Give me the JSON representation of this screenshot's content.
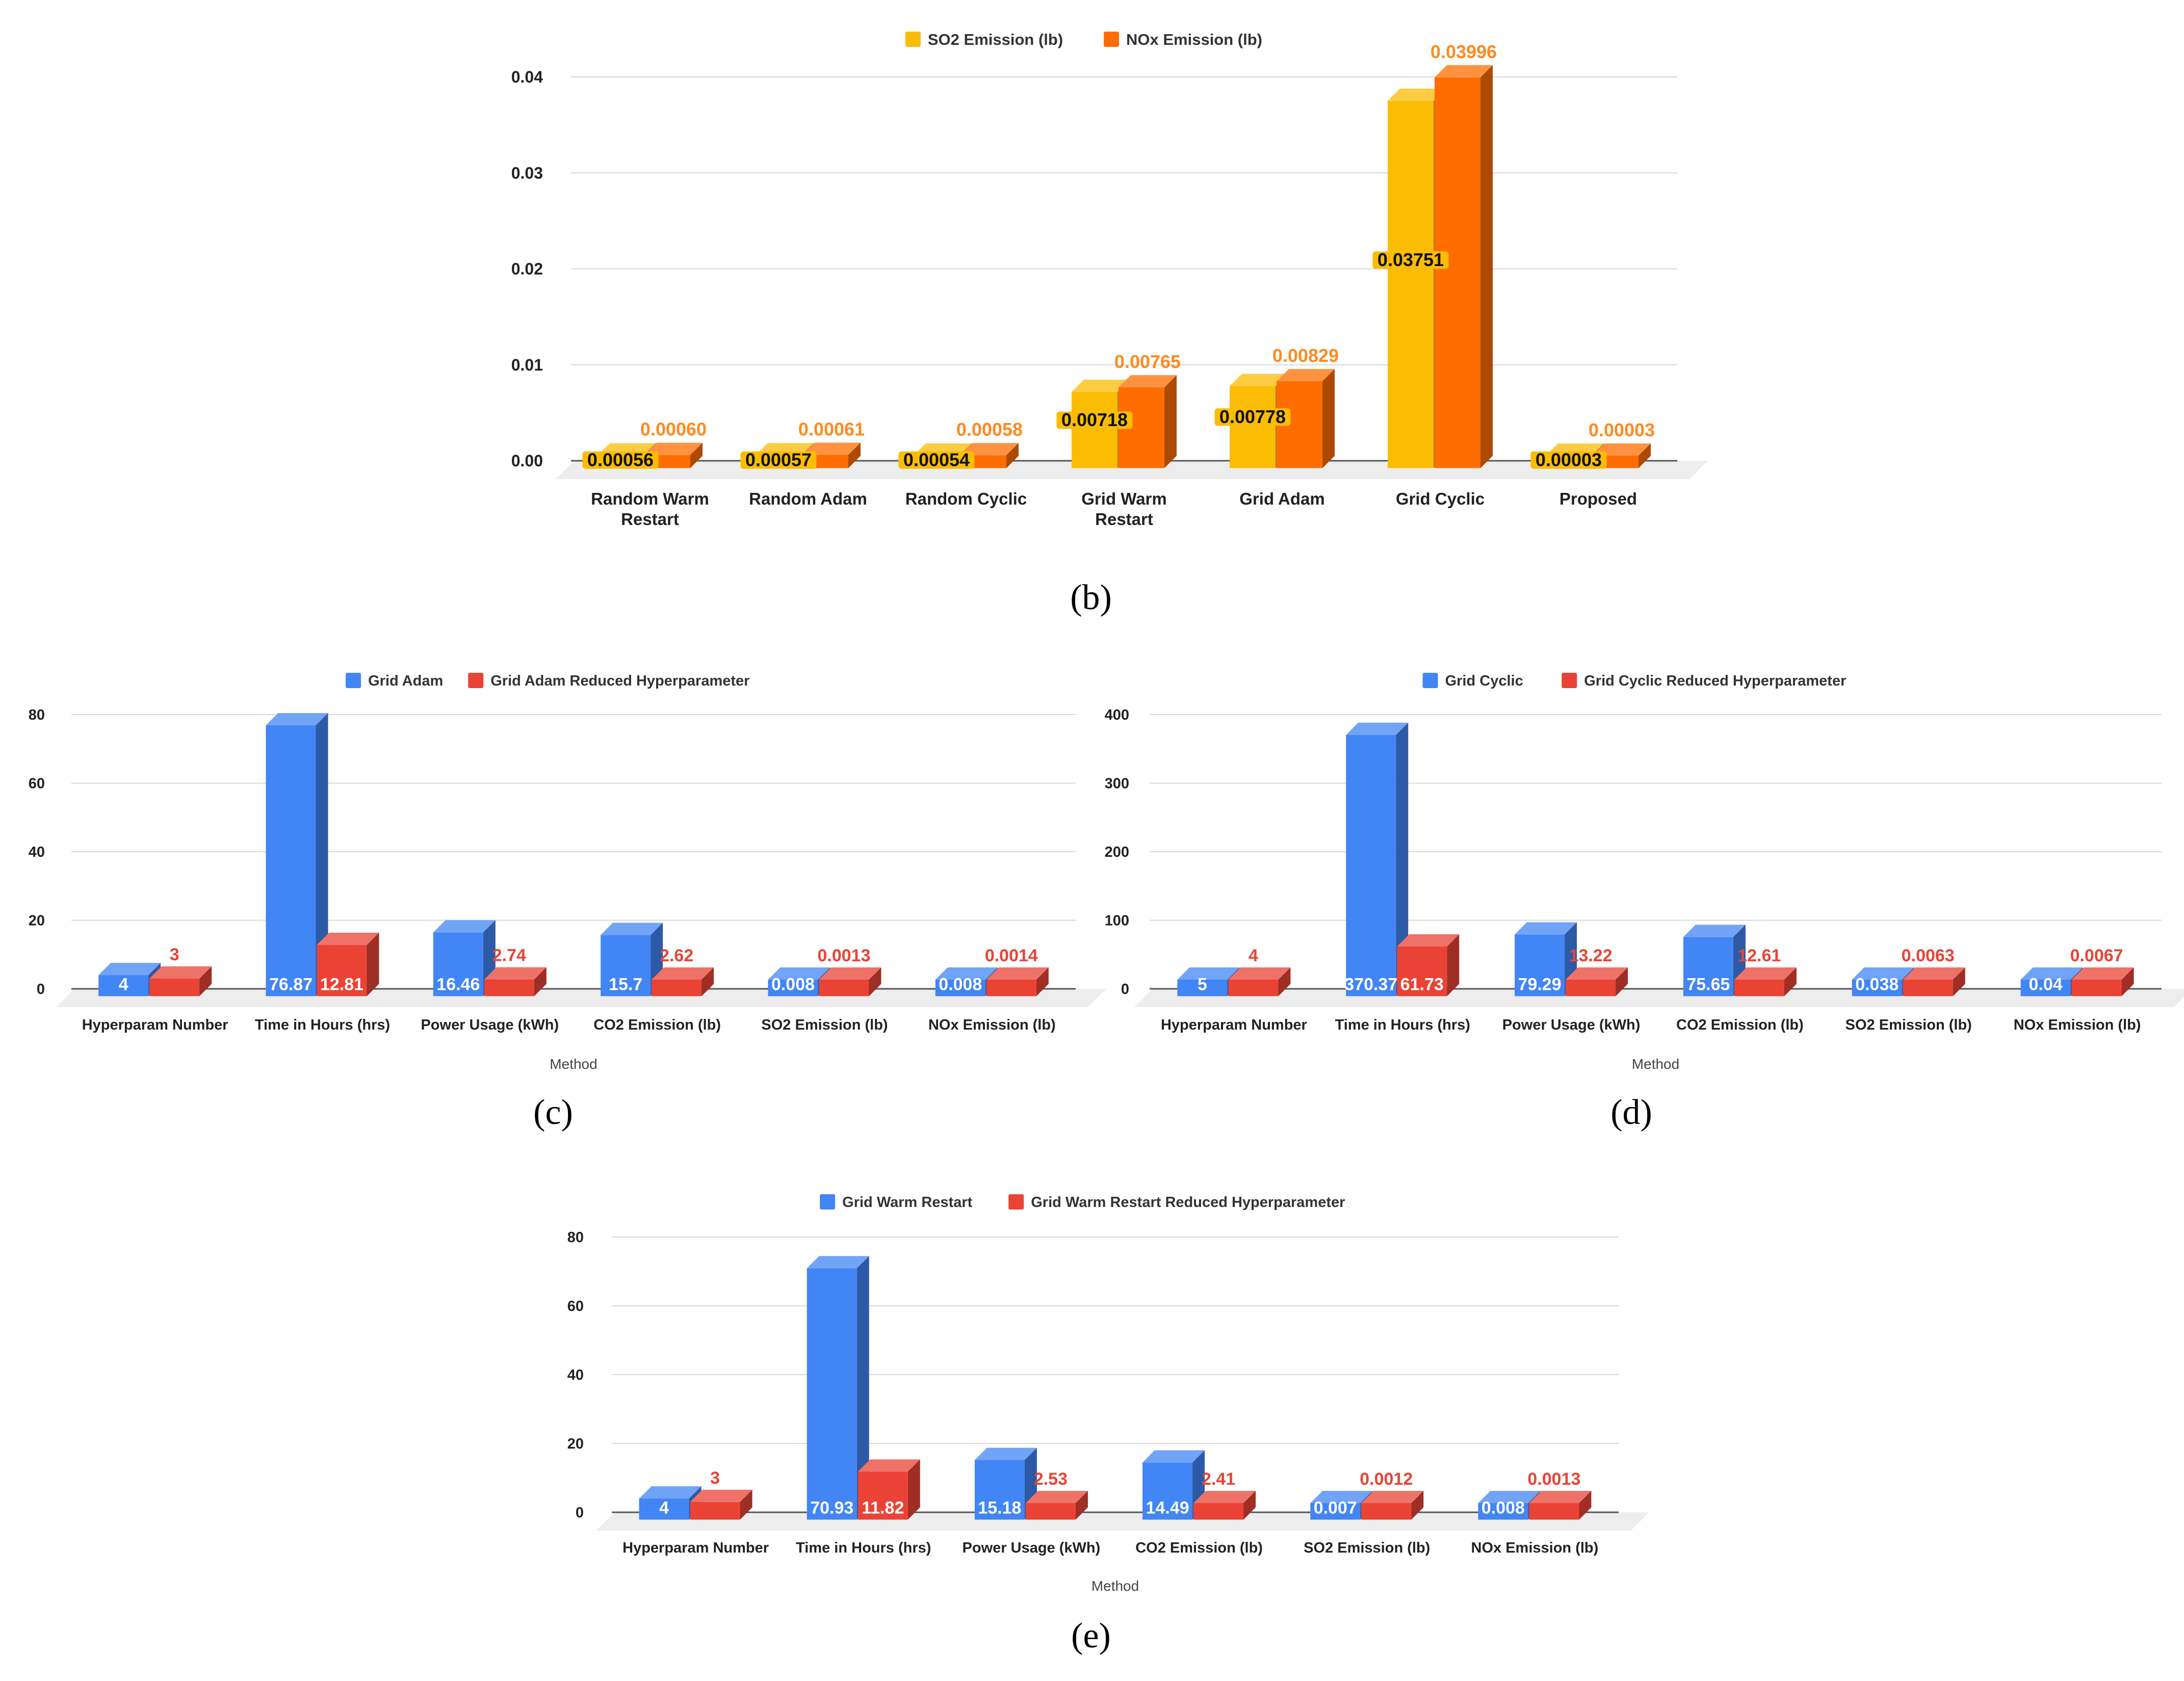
{
  "chart_data": [
    {
      "id": "b",
      "type": "bar",
      "caption": "(b)",
      "title": "",
      "xlabel": "",
      "ylabel": "",
      "ylim": [
        0,
        0.04
      ],
      "yticks": [
        0,
        0.01,
        0.02,
        0.03,
        0.04
      ],
      "ytick_labels": [
        "0.00",
        "0.01",
        "0.02",
        "0.03",
        "0.04"
      ],
      "categories": [
        [
          "Random Warm",
          "Restart"
        ],
        [
          "Random Adam"
        ],
        [
          "Random Cyclic"
        ],
        [
          "Grid Warm",
          "Restart"
        ],
        [
          "Grid Adam"
        ],
        [
          "Grid Cyclic"
        ],
        [
          "Proposed"
        ]
      ],
      "legend_position": "top",
      "series": [
        {
          "name": "SO2 Emission (lb)",
          "color": "#fbbc04",
          "values": [
            0.00056,
            0.00057,
            0.00054,
            0.00718,
            0.00778,
            0.03751,
            3e-05
          ],
          "labels": [
            "0.00056",
            "0.00057",
            "0.00054",
            "0.00718",
            "0.00778",
            "0.03751",
            "0.00003"
          ],
          "label_color": "#111111",
          "label_style": "inside-highlight"
        },
        {
          "name": "NOx Emission (lb)",
          "color": "#ff6d01",
          "values": [
            0.0006,
            0.00061,
            0.00058,
            0.00765,
            0.00829,
            0.03996,
            3e-05
          ],
          "labels": [
            "0.00060",
            "0.00061",
            "0.00058",
            "0.00765",
            "0.00829",
            "0.03996",
            "0.00003"
          ],
          "label_color": "#ff8a1f",
          "label_style": "above"
        }
      ]
    },
    {
      "id": "c",
      "type": "bar",
      "caption": "(c)",
      "title": "",
      "xlabel": "Method",
      "ylabel": "",
      "ylim": [
        0,
        80
      ],
      "yticks": [
        0,
        20,
        40,
        60,
        80
      ],
      "ytick_labels": [
        "0",
        "20",
        "40",
        "60",
        "80"
      ],
      "categories": [
        [
          "Hyperparam Number"
        ],
        [
          "Time in Hours (hrs)"
        ],
        [
          "Power Usage (kWh)"
        ],
        [
          "CO2 Emission (lb)"
        ],
        [
          "SO2 Emission (lb)"
        ],
        [
          "NOx Emission (lb)"
        ]
      ],
      "legend_position": "top",
      "series": [
        {
          "name": "Grid Adam",
          "color": "#4285f4",
          "values": [
            4,
            76.87,
            16.46,
            15.7,
            0.008,
            0.008
          ],
          "labels": [
            "4",
            "76.87",
            "16.46",
            "15.7",
            "0.008",
            "0.008"
          ],
          "label_color": "#ffffff",
          "label_style": "inside"
        },
        {
          "name": "Grid Adam Reduced Hyperparameter",
          "color": "#ea4335",
          "values": [
            3,
            12.81,
            2.74,
            2.62,
            0.0013,
            0.0014
          ],
          "labels": [
            "3",
            "12.81",
            "2.74",
            "2.62",
            "0.0013",
            "0.0014"
          ],
          "label_color": "#ea4335",
          "label_style": "above-or-inside"
        }
      ]
    },
    {
      "id": "d",
      "type": "bar",
      "caption": "(d)",
      "title": "",
      "xlabel": "Method",
      "ylabel": "",
      "ylim": [
        0,
        400
      ],
      "yticks": [
        0,
        100,
        200,
        300,
        400
      ],
      "ytick_labels": [
        "0",
        "100",
        "200",
        "300",
        "400"
      ],
      "categories": [
        [
          "Hyperparam Number"
        ],
        [
          "Time in Hours (hrs)"
        ],
        [
          "Power Usage (kWh)"
        ],
        [
          "CO2 Emission (lb)"
        ],
        [
          "SO2 Emission (lb)"
        ],
        [
          "NOx Emission (lb)"
        ]
      ],
      "legend_position": "top",
      "series": [
        {
          "name": "Grid Cyclic",
          "color": "#4285f4",
          "values": [
            5,
            370.37,
            79.29,
            75.65,
            0.038,
            0.04
          ],
          "labels": [
            "5",
            "370.37",
            "79.29",
            "75.65",
            "0.038",
            "0.04"
          ],
          "label_color": "#ffffff",
          "label_style": "inside"
        },
        {
          "name": "Grid Cyclic Reduced Hyperparameter",
          "color": "#ea4335",
          "values": [
            4,
            61.73,
            13.22,
            12.61,
            0.0063,
            0.0067
          ],
          "labels": [
            "4",
            "61.73",
            "13.22",
            "12.61",
            "0.0063",
            "0.0067"
          ],
          "label_color": "#ea4335",
          "label_style": "above-or-inside"
        }
      ]
    },
    {
      "id": "e",
      "type": "bar",
      "caption": "(e)",
      "title": "",
      "xlabel": "Method",
      "ylabel": "",
      "ylim": [
        0,
        80
      ],
      "yticks": [
        0,
        20,
        40,
        60,
        80
      ],
      "ytick_labels": [
        "0",
        "20",
        "40",
        "60",
        "80"
      ],
      "categories": [
        [
          "Hyperparam Number"
        ],
        [
          "Time in Hours (hrs)"
        ],
        [
          "Power Usage (kWh)"
        ],
        [
          "CO2 Emission (lb)"
        ],
        [
          "SO2 Emission (lb)"
        ],
        [
          "NOx Emission (lb)"
        ]
      ],
      "legend_position": "top",
      "series": [
        {
          "name": "Grid Warm Restart",
          "color": "#4285f4",
          "values": [
            4,
            70.93,
            15.18,
            14.49,
            0.007,
            0.008
          ],
          "labels": [
            "4",
            "70.93",
            "15.18",
            "14.49",
            "0.007",
            "0.008"
          ],
          "label_color": "#ffffff",
          "label_style": "inside"
        },
        {
          "name": "Grid Warm Restart Reduced Hyperparameter",
          "color": "#ea4335",
          "values": [
            3,
            11.82,
            2.53,
            2.41,
            0.0012,
            0.0013
          ],
          "labels": [
            "3",
            "11.82",
            "2.53",
            "2.41",
            "0.0012",
            "0.0013"
          ],
          "label_color": "#ea4335",
          "label_style": "above-or-inside"
        }
      ]
    }
  ]
}
